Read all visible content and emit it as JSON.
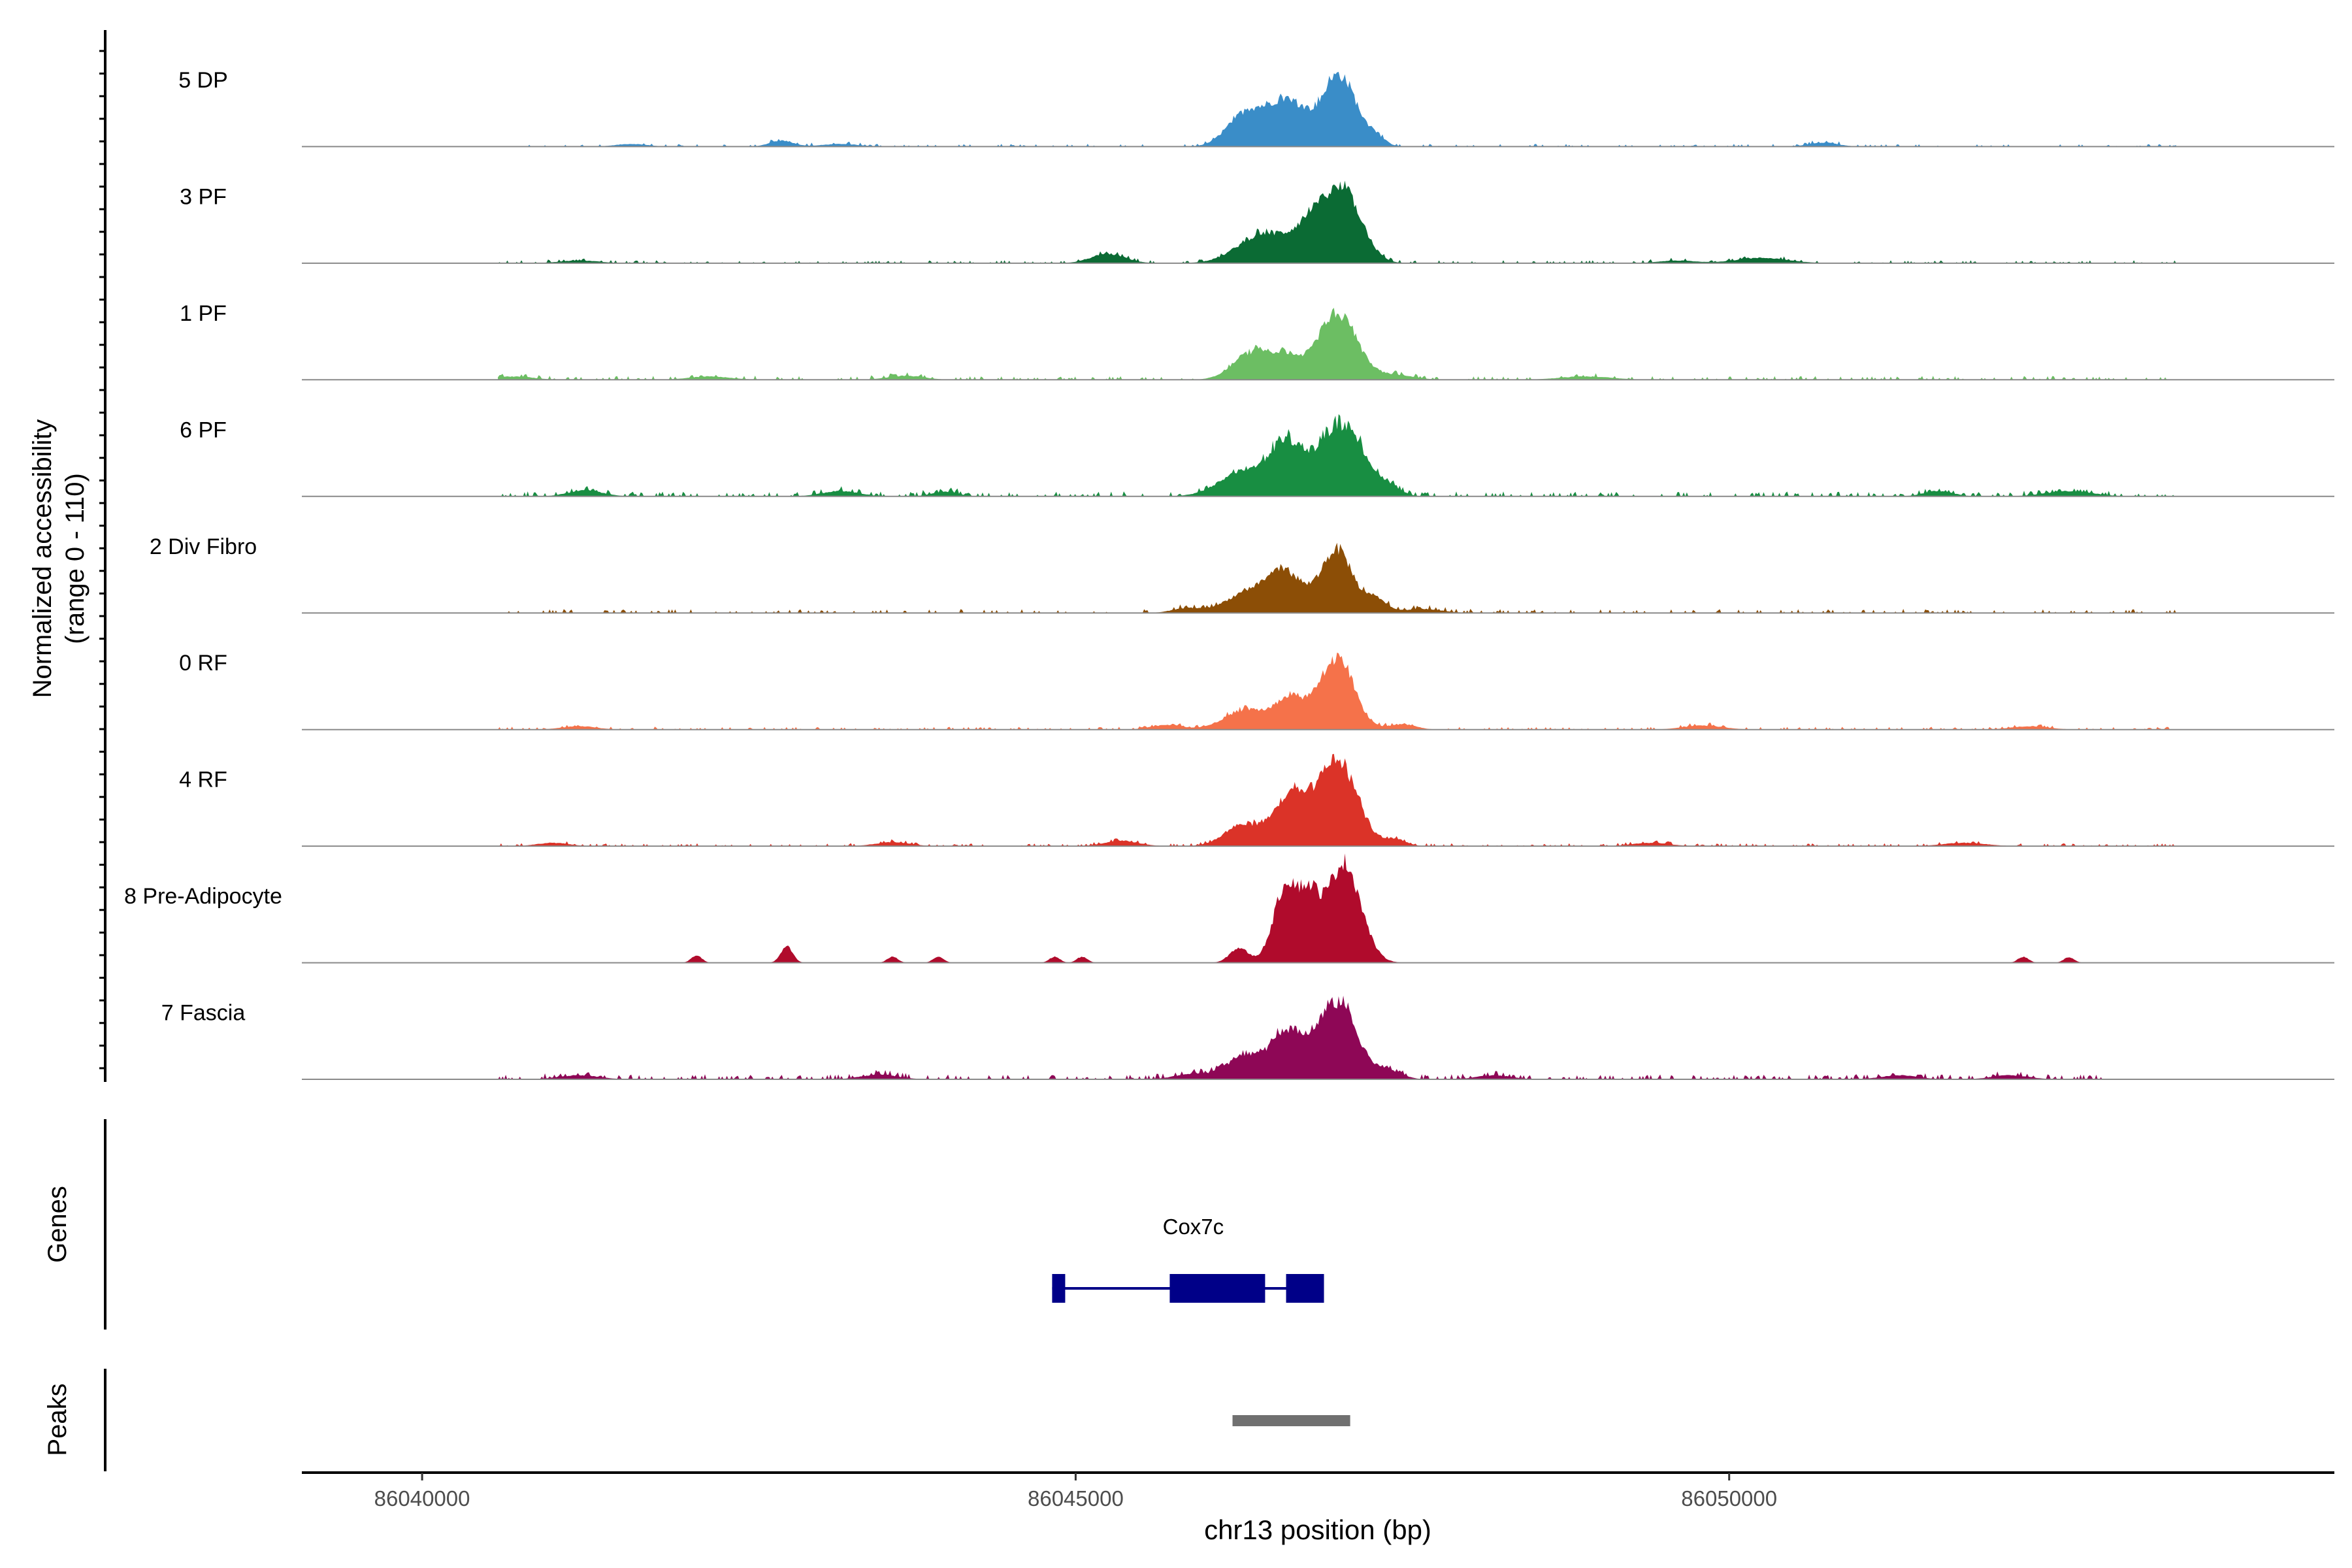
{
  "chart_data": {
    "type": "area",
    "chromosome": "chr13",
    "xlabel": "chr13 position (bp)",
    "x_range": [
      86039080,
      86054630
    ],
    "ylabel_line1": "Normalized accessibility",
    "ylabel_line2": "(range 0 - 110)",
    "y_range": [
      0,
      110
    ],
    "tick_values": [
      86040000,
      86045000,
      86050000
    ],
    "tick_labels": [
      "86040000",
      "86045000",
      "86050000"
    ],
    "track_labels": {
      "genes": "Genes",
      "peaks": "Peaks"
    },
    "series": [
      {
        "name": "5 DP",
        "color": "#3A8DC8",
        "peaks": [
          [
            86046300,
            48,
            140
          ],
          [
            86046620,
            68,
            150
          ],
          [
            86047020,
            106,
            130
          ],
          [
            86047300,
            12,
            70
          ],
          [
            86042750,
            9,
            90
          ],
          [
            86050720,
            6,
            110
          ],
          [
            86041600,
            4,
            120
          ],
          [
            86043200,
            4,
            140
          ]
        ],
        "noise": [
          [
            86040000,
            86053800,
            3,
            0.16
          ]
        ]
      },
      {
        "name": "3 PF",
        "color": "#0B6B34",
        "peaks": [
          [
            86045250,
            14,
            130
          ],
          [
            86046450,
            45,
            200
          ],
          [
            86046800,
            48,
            120
          ],
          [
            86047050,
            106,
            140
          ],
          [
            86050250,
            8,
            200
          ],
          [
            86049600,
            4,
            140
          ],
          [
            86041200,
            4,
            150
          ]
        ],
        "noise": [
          [
            86039900,
            86053900,
            3,
            0.22
          ]
        ]
      },
      {
        "name": "1 PF",
        "color": "#6CBE63",
        "peaks": [
          [
            86046340,
            40,
            140
          ],
          [
            86046600,
            33,
            110
          ],
          [
            86047000,
            100,
            150
          ],
          [
            86047450,
            7,
            140
          ],
          [
            86040700,
            5,
            150
          ],
          [
            86042200,
            5,
            160
          ],
          [
            86043700,
            6,
            140
          ],
          [
            86048900,
            5,
            200
          ]
        ],
        "noise": [
          [
            86039900,
            86053900,
            4,
            0.2
          ]
        ]
      },
      {
        "name": "6 PF",
        "color": "#188E42",
        "peaks": [
          [
            86046300,
            38,
            190
          ],
          [
            86046600,
            66,
            110
          ],
          [
            86046850,
            43,
            150
          ],
          [
            86047080,
            92,
            150
          ],
          [
            86047400,
            12,
            90
          ],
          [
            86041250,
            9,
            130
          ],
          [
            86043200,
            8,
            140
          ],
          [
            86044000,
            7,
            100
          ],
          [
            86052600,
            8,
            180
          ],
          [
            86051600,
            8,
            110
          ]
        ],
        "noise": [
          [
            86039900,
            86053900,
            5,
            0.25
          ]
        ]
      },
      {
        "name": "2 Div Fibro",
        "color": "#8C4E06",
        "peaks": [
          [
            86046300,
            28,
            160
          ],
          [
            86046600,
            60,
            140
          ],
          [
            86047000,
            95,
            120
          ],
          [
            86047300,
            20,
            80
          ],
          [
            86047650,
            6,
            150
          ],
          [
            86045850,
            7,
            110
          ],
          [
            86039980,
            6,
            60
          ]
        ],
        "noise": [
          [
            86040000,
            86053800,
            4,
            0.2
          ]
        ]
      },
      {
        "name": "0 RF",
        "color": "#F5724A",
        "peaks": [
          [
            86046300,
            30,
            160
          ],
          [
            86046650,
            45,
            120
          ],
          [
            86047000,
            106,
            130
          ],
          [
            86047500,
            8,
            100
          ],
          [
            86045700,
            7,
            120
          ],
          [
            86041200,
            5,
            130
          ],
          [
            86049800,
            6,
            150
          ],
          [
            86052300,
            5,
            140
          ]
        ],
        "noise": [
          [
            86039900,
            86053900,
            3,
            0.22
          ]
        ]
      },
      {
        "name": "4 RF",
        "color": "#DB3328",
        "peaks": [
          [
            86046300,
            32,
            150
          ],
          [
            86046650,
            75,
            120
          ],
          [
            86047000,
            130,
            150
          ],
          [
            86047450,
            10,
            80
          ],
          [
            86045350,
            8,
            130
          ],
          [
            86041000,
            5,
            120
          ],
          [
            86043600,
            6,
            130
          ],
          [
            86049400,
            5,
            140
          ],
          [
            86051800,
            5,
            160
          ]
        ],
        "noise": [
          [
            86040000,
            86053800,
            3,
            0.22
          ]
        ]
      },
      {
        "name": "8 Pre-Adipocyte",
        "color": "#B00B2C",
        "peaks": [
          [
            86046250,
            22,
            70
          ],
          [
            86046620,
            120,
            100
          ],
          [
            86046800,
            70,
            70
          ],
          [
            86047050,
            150,
            130
          ],
          [
            86042790,
            24,
            45
          ],
          [
            86042100,
            11,
            40
          ],
          [
            86043600,
            9,
            40
          ],
          [
            86043950,
            9,
            40
          ],
          [
            86044840,
            9,
            40
          ],
          [
            86045050,
            9,
            40
          ],
          [
            86052250,
            9,
            40
          ],
          [
            86052600,
            8,
            40
          ]
        ],
        "noise": []
      },
      {
        "name": "7 Fascia",
        "color": "#8E0756",
        "peaks": [
          [
            86046300,
            35,
            140
          ],
          [
            86046620,
            68,
            120
          ],
          [
            86047000,
            117,
            150
          ],
          [
            86047400,
            12,
            100
          ],
          [
            86045900,
            8,
            140
          ],
          [
            86041200,
            6,
            150
          ],
          [
            86043500,
            7,
            140
          ],
          [
            86048200,
            6,
            130
          ],
          [
            86051300,
            6,
            140
          ],
          [
            86052150,
            6,
            140
          ]
        ],
        "noise": [
          [
            86039900,
            86052900,
            5,
            0.28
          ]
        ]
      }
    ],
    "genes": [
      {
        "name": "Cox7c",
        "start": 86044820,
        "end": 86046900,
        "color": "#000088",
        "exons": [
          [
            86044820,
            86044920
          ],
          [
            86045720,
            86046450
          ],
          [
            86046610,
            86046900
          ]
        ]
      }
    ],
    "peak_regions": [
      {
        "start": 86046200,
        "end": 86047100,
        "color": "#707070"
      }
    ]
  }
}
